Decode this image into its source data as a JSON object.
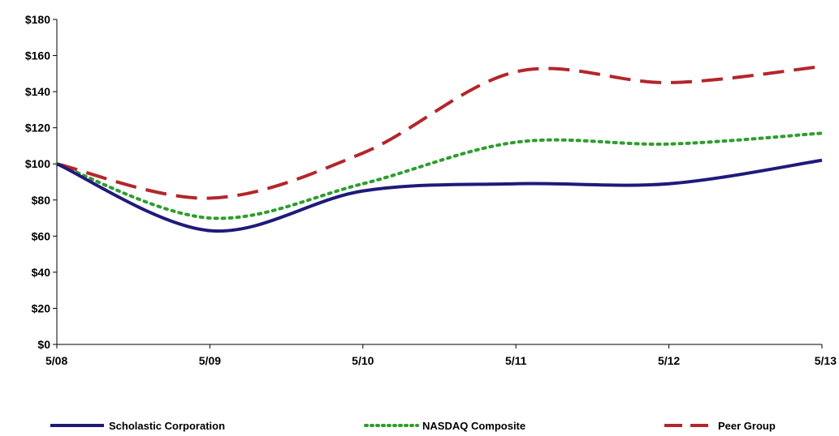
{
  "chart_data": {
    "type": "line",
    "title": "",
    "xlabel": "",
    "ylabel": "",
    "categories": [
      "5/08",
      "5/09",
      "5/10",
      "5/11",
      "5/12",
      "5/13"
    ],
    "ylim": [
      0,
      180
    ],
    "y_ticks": [
      "$0",
      "$20",
      "$40",
      "$60",
      "$80",
      "$100",
      "$120",
      "$140",
      "$160",
      "$180"
    ],
    "grid": false,
    "legend_position": "bottom",
    "series": [
      {
        "name": "Scholastic Corporation",
        "values": [
          100,
          63,
          85,
          89,
          89,
          102
        ],
        "color": "#1f1a7a",
        "style": "solid"
      },
      {
        "name": "NASDAQ Composite",
        "values": [
          100,
          70,
          89,
          112,
          111,
          117
        ],
        "color": "#2e9d2e",
        "style": "dotted"
      },
      {
        "name": "Peer Group",
        "values": [
          100,
          81,
          106,
          151,
          145,
          154
        ],
        "color": "#b3262b",
        "style": "dashed"
      }
    ]
  }
}
